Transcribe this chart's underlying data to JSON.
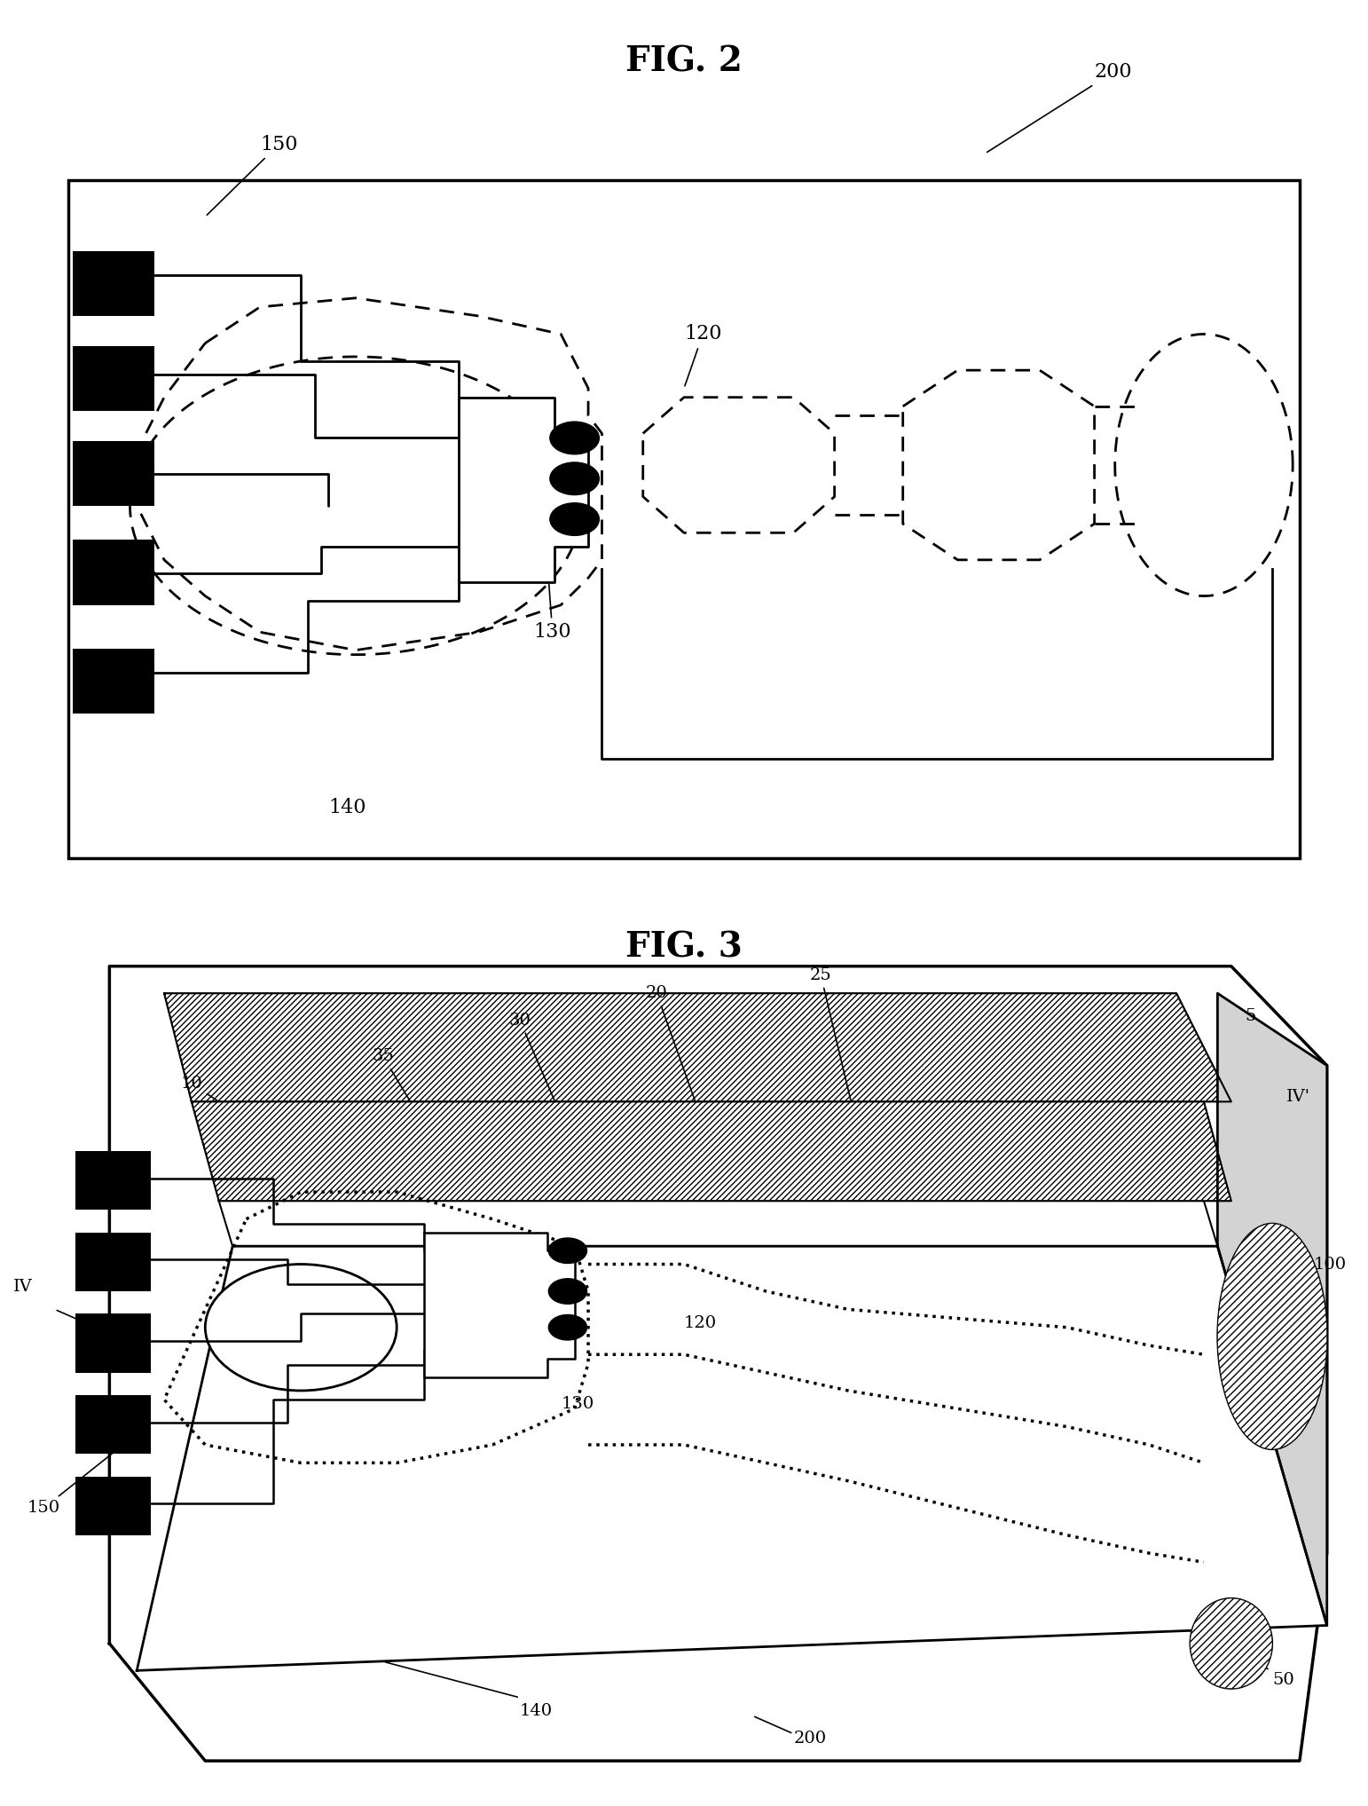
{
  "fig2_title": "FIG. 2",
  "fig3_title": "FIG. 3",
  "bg_color": "#ffffff",
  "line_color": "#000000",
  "label_200_fig2": "200",
  "label_150_fig2": "150",
  "label_120_fig2": "120",
  "label_130_fig2": "130",
  "label_140_fig2": "140",
  "label_10": "10",
  "label_25": "25",
  "label_20": "20",
  "label_30": "30",
  "label_35": "35",
  "label_5": "5",
  "label_100": "100",
  "label_50": "50",
  "label_120_fig3": "120",
  "label_130_fig3": "130",
  "label_140_fig3": "140",
  "label_150_fig3": "150",
  "label_200_fig3": "200",
  "label_IV": "IV",
  "label_IVp": "IV'"
}
